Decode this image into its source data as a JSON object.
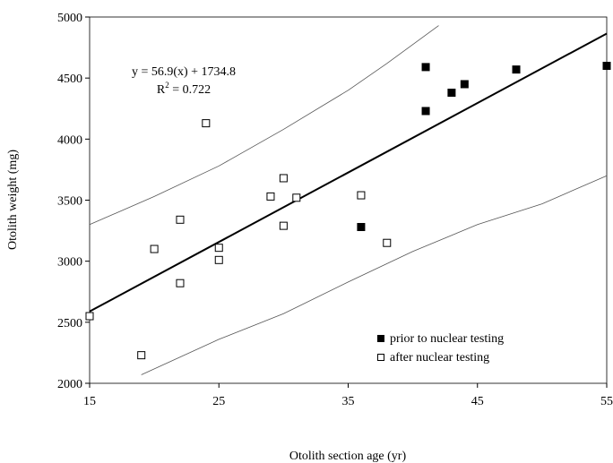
{
  "chart_data": {
    "type": "scatter",
    "xlabel": "Otolith section age (yr)",
    "ylabel": "Otolith weight (mg)",
    "xlim": [
      15,
      55
    ],
    "ylim": [
      2000,
      5000
    ],
    "xticks": [
      15,
      25,
      35,
      45,
      55
    ],
    "yticks": [
      2000,
      2500,
      3000,
      3500,
      4000,
      4500,
      5000
    ],
    "grid": false,
    "legend_position": "bottom-right",
    "annotation": {
      "equation": "y = 56.9(x) + 1734.8",
      "r2_prefix": "R",
      "r2_sup": "2",
      "r2_suffix": " = 0.722"
    },
    "regression": {
      "slope": 56.9,
      "intercept": 1734.8,
      "x_range": [
        15,
        55
      ]
    },
    "confidence_bands": {
      "upper": [
        [
          15,
          3300
        ],
        [
          20,
          3530
        ],
        [
          25,
          3780
        ],
        [
          30,
          4080
        ],
        [
          35,
          4400
        ],
        [
          38,
          4620
        ],
        [
          42,
          4930
        ]
      ],
      "lower": [
        [
          19,
          2070
        ],
        [
          25,
          2360
        ],
        [
          30,
          2570
        ],
        [
          35,
          2830
        ],
        [
          40,
          3080
        ],
        [
          45,
          3300
        ],
        [
          50,
          3470
        ],
        [
          55,
          3700
        ]
      ]
    },
    "series": [
      {
        "name": "prior to nuclear testing",
        "marker": "filled-square",
        "points": [
          [
            36,
            3280
          ],
          [
            41,
            4590
          ],
          [
            41,
            4230
          ],
          [
            43,
            4380
          ],
          [
            44,
            4450
          ],
          [
            48,
            4570
          ],
          [
            55,
            4600
          ]
        ]
      },
      {
        "name": "after nuclear testing",
        "marker": "open-square",
        "points": [
          [
            15,
            2550
          ],
          [
            19,
            2230
          ],
          [
            20,
            3100
          ],
          [
            22,
            2820
          ],
          [
            22,
            3340
          ],
          [
            24,
            4130
          ],
          [
            25,
            3110
          ],
          [
            25,
            3010
          ],
          [
            29,
            3530
          ],
          [
            30,
            3680
          ],
          [
            30,
            3290
          ],
          [
            31,
            3520
          ],
          [
            36,
            3540
          ],
          [
            38,
            3150
          ]
        ]
      }
    ]
  }
}
